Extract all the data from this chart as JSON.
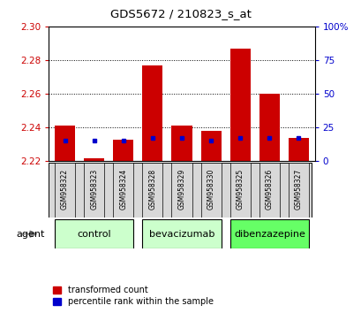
{
  "title": "GDS5672 / 210823_s_at",
  "samples": [
    "GSM958322",
    "GSM958323",
    "GSM958324",
    "GSM958328",
    "GSM958329",
    "GSM958330",
    "GSM958325",
    "GSM958326",
    "GSM958327"
  ],
  "red_values": [
    2.241,
    2.222,
    2.233,
    2.277,
    2.241,
    2.238,
    2.287,
    2.26,
    2.234
  ],
  "blue_values": [
    15,
    15,
    15,
    17,
    17,
    15,
    17,
    17,
    17
  ],
  "ylim_left": [
    2.22,
    2.3
  ],
  "ylim_right": [
    0,
    100
  ],
  "yticks_left": [
    2.22,
    2.24,
    2.26,
    2.28,
    2.3
  ],
  "yticks_right": [
    0,
    25,
    50,
    75,
    100
  ],
  "ytick_labels_right": [
    "0",
    "25",
    "50",
    "75",
    "100%"
  ],
  "groups": [
    {
      "label": "control",
      "indices": [
        0,
        1,
        2
      ],
      "color": "#ccffcc"
    },
    {
      "label": "bevacizumab",
      "indices": [
        3,
        4,
        5
      ],
      "color": "#ccffcc"
    },
    {
      "label": "dibenzazepine",
      "indices": [
        6,
        7,
        8
      ],
      "color": "#66ff66"
    }
  ],
  "bar_width": 0.7,
  "red_color": "#cc0000",
  "blue_color": "#0000cc",
  "baseline": 2.22,
  "grid_color": "#000000",
  "bg_color": "#ffffff",
  "plot_bg": "#ffffff",
  "left_label_color": "#cc0000",
  "right_label_color": "#0000cc",
  "legend_red": "transformed count",
  "legend_blue": "percentile rank within the sample",
  "agent_label": "agent",
  "bar_area_bg": "#d8d8d8"
}
